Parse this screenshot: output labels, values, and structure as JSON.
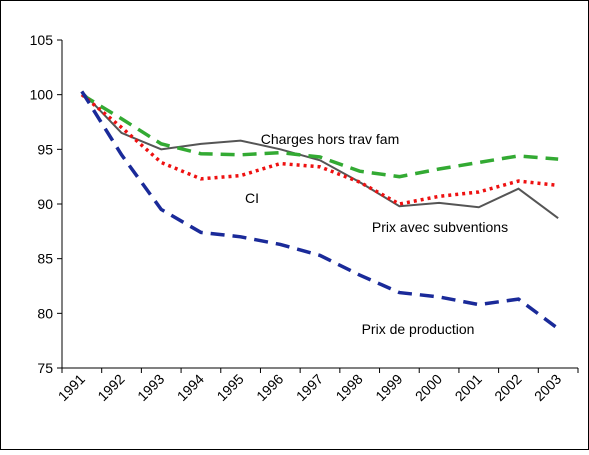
{
  "chart_data": {
    "type": "line",
    "categories": [
      "1991",
      "1992",
      "1993",
      "1994",
      "1995",
      "1996",
      "1997",
      "1998",
      "1999",
      "2000",
      "2001",
      "2002",
      "2003"
    ],
    "ylim": [
      75,
      105
    ],
    "yticks": [
      75,
      80,
      85,
      90,
      95,
      100,
      105
    ],
    "series": [
      {
        "name": "Prix avec subventions",
        "color": "#555555",
        "dash": "solid",
        "values": [
          100.3,
          96.5,
          95.0,
          95.5,
          95.8,
          95.0,
          94.0,
          92.0,
          89.8,
          90.1,
          89.7,
          91.4,
          88.7
        ]
      },
      {
        "name": "Charges hors trav fam",
        "color": "#33aa33",
        "dash": "dashed",
        "values": [
          100.0,
          97.8,
          95.5,
          94.6,
          94.5,
          94.7,
          94.3,
          93.0,
          92.5,
          93.2,
          93.8,
          94.4,
          94.1
        ]
      },
      {
        "name": "CI",
        "color": "#ee1111",
        "dash": "dotted",
        "values": [
          100.0,
          97.0,
          93.8,
          92.3,
          92.6,
          93.7,
          93.4,
          92.0,
          90.0,
          90.7,
          91.1,
          92.1,
          91.7
        ]
      },
      {
        "name": "Prix de production",
        "color": "#1a2a99",
        "dash": "dashed",
        "values": [
          100.3,
          94.5,
          89.5,
          87.4,
          87.0,
          86.3,
          85.3,
          83.5,
          81.9,
          81.5,
          80.8,
          81.3,
          78.6
        ]
      }
    ]
  }
}
